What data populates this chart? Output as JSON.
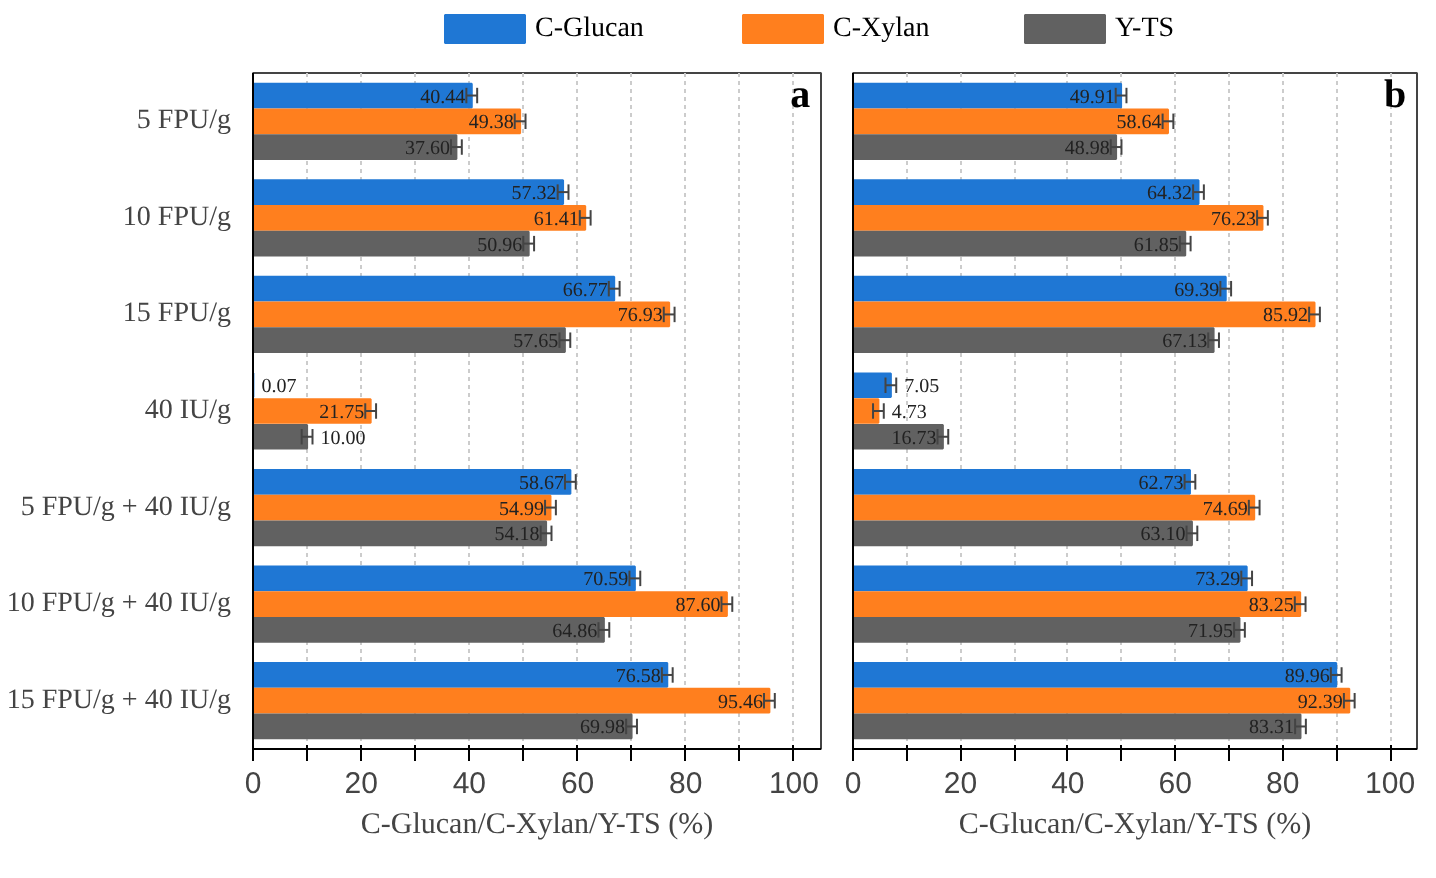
{
  "chart_data": [
    {
      "type": "bar",
      "orientation": "horizontal",
      "categories": [
        "5 FPU/g",
        "10 FPU/g",
        "15 FPU/g",
        "40 IU/g",
        "5 FPU/g + 40 IU/g",
        "10 FPU/g + 40 IU/g",
        "15 FPU/g + 40 IU/g"
      ],
      "series": [
        {
          "name": "C-Glucan",
          "color": "#1f77d4",
          "values": [
            40.44,
            57.32,
            66.77,
            0.07,
            58.67,
            70.59,
            76.58
          ],
          "errors": [
            1,
            1,
            1,
            null,
            1,
            1,
            1
          ],
          "value_labels": [
            "40.44",
            "57.32",
            "66.77",
            "0.07",
            "58.67",
            "70.59",
            "76.58"
          ]
        },
        {
          "name": "C-Xylan",
          "color": "#ff7f1e",
          "values": [
            49.38,
            61.41,
            76.93,
            21.75,
            54.99,
            87.6,
            95.46
          ],
          "errors": [
            1,
            1,
            1,
            1,
            1,
            1,
            1
          ],
          "value_labels": [
            "49.38",
            "61.41",
            "76.93",
            "21.75",
            "54.99",
            "87.60",
            "95.46"
          ]
        },
        {
          "name": "Y-TS",
          "color": "#616161",
          "values": [
            37.6,
            50.96,
            57.65,
            10.0,
            54.18,
            64.86,
            69.98
          ],
          "errors": [
            1,
            1,
            1,
            1,
            1,
            1,
            1
          ],
          "value_labels": [
            "37.60",
            "50.96",
            "57.65",
            "10.00",
            "54.18",
            "64.86",
            "69.98"
          ]
        }
      ],
      "xlim": [
        0,
        105
      ],
      "xticks": [
        0,
        {
          "value": 10,
          "label": null
        },
        20,
        {
          "value": 30,
          "label": null
        },
        40,
        {
          "value": 50,
          "label": null
        },
        60,
        {
          "value": 70,
          "label": null
        },
        80,
        {
          "value": 90,
          "label": null
        },
        100
      ],
      "xlabel": "C-Glucan/C-Xylan/Y-TS (%)",
      "grid": "x",
      "legend": "top",
      "annotations": [
        "a"
      ]
    },
    {
      "type": "bar",
      "orientation": "horizontal",
      "categories": [
        null,
        null,
        null,
        null,
        null,
        null,
        null
      ],
      "series": [
        {
          "color": "#1f77d4",
          "values": [
            49.91,
            64.32,
            69.39,
            7.05,
            62.73,
            73.29,
            89.96
          ],
          "errors": [
            1,
            1,
            1,
            1,
            1,
            1,
            1
          ],
          "value_labels": [
            "49.91",
            "64.32",
            "69.39",
            "7.05",
            "62.73",
            "73.29",
            "89.96"
          ]
        },
        {
          "color": "#ff7f1e",
          "values": [
            58.64,
            76.23,
            85.92,
            4.73,
            74.69,
            83.25,
            92.39
          ],
          "errors": [
            1,
            1,
            1,
            1,
            1,
            1,
            1
          ],
          "value_labels": [
            "58.64",
            "76.23",
            "85.92",
            "4.73",
            "74.69",
            "83.25",
            "92.39"
          ]
        },
        {
          "color": "#616161",
          "values": [
            48.98,
            61.85,
            67.13,
            16.73,
            63.1,
            71.95,
            83.31
          ],
          "errors": [
            1,
            1,
            1,
            1,
            1,
            1,
            1
          ],
          "value_labels": [
            "48.98",
            "61.85",
            "67.13",
            "16.73",
            "63.10",
            "71.95",
            "83.31"
          ]
        }
      ],
      "xlim": [
        0,
        105
      ],
      "xticks": [
        0,
        {
          "value": 10,
          "label": null
        },
        20,
        {
          "value": 30,
          "label": null
        },
        40,
        {
          "value": 50,
          "label": null
        },
        60,
        {
          "value": 70,
          "label": null
        },
        80,
        {
          "value": 90,
          "label": null
        },
        100
      ],
      "xlabel": "C-Glucan/C-Xylan/Y-TS (%)",
      "grid": "x",
      "tick_labels": "x",
      "annotations": [
        "b"
      ]
    }
  ]
}
